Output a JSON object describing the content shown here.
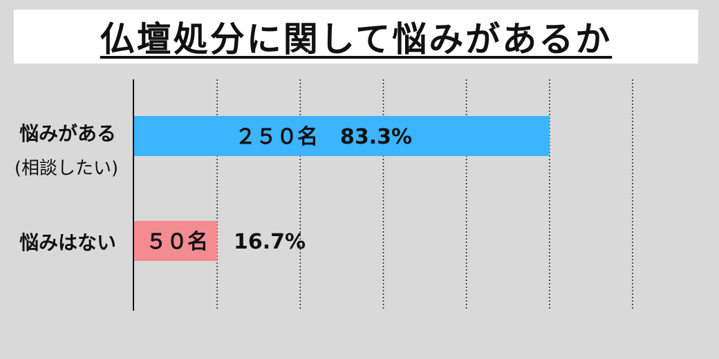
{
  "title": "仏壇処分に関して悩みがあるか",
  "chart_data": {
    "type": "bar",
    "orientation": "horizontal",
    "title": "仏壇処分に関して悩みがあるか",
    "categories": [
      "悩みがある(相談したい)",
      "悩みはない"
    ],
    "category_lines": [
      [
        "悩みがある",
        "(相談したい)"
      ],
      [
        "悩みはない"
      ]
    ],
    "values": [
      250,
      50
    ],
    "percent_labels": [
      "83.3%",
      "16.7%"
    ],
    "count_labels": [
      "２５０名",
      "５０名"
    ],
    "colors": [
      "#3cb4ff",
      "#f28c91"
    ],
    "xlim": [
      0,
      300
    ],
    "grid_step": 50,
    "grid": true,
    "grid_style": "dotted vertical"
  }
}
